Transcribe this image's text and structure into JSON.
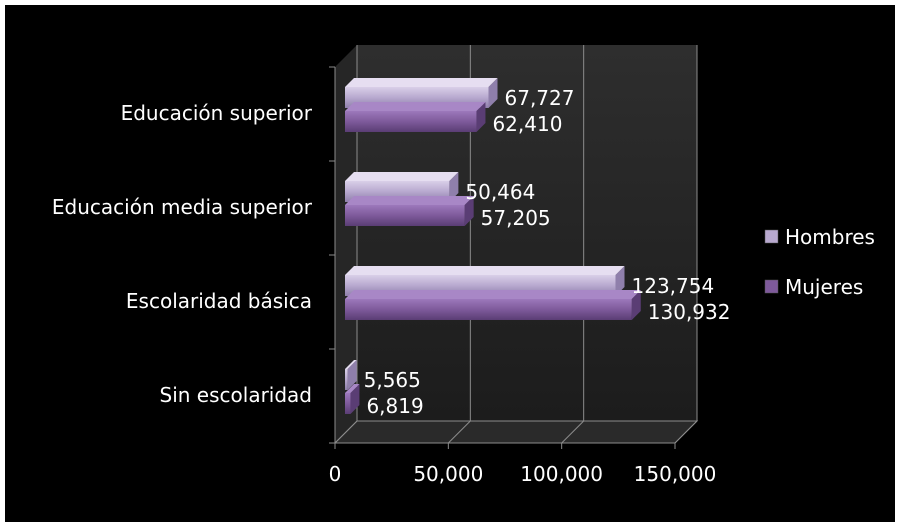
{
  "chart_data": {
    "type": "bar",
    "orientation": "horizontal",
    "style": "3d",
    "categories": [
      "Sin escolaridad",
      "Escolaridad básica",
      "Educación media superior",
      "Educación superior"
    ],
    "series": [
      {
        "name": "Hombres",
        "values": [
          5565,
          123754,
          50464,
          67727
        ],
        "labels": [
          "5,565",
          "123,754",
          "50,464",
          "67,727"
        ],
        "color": "#b8a9cf"
      },
      {
        "name": "Mujeres",
        "values": [
          6819,
          130932,
          57205,
          62410
        ],
        "labels": [
          "6,819",
          "130,932",
          "57,205",
          "62,410"
        ],
        "color": "#7e5a9b"
      }
    ],
    "x_ticks": [
      0,
      50000,
      100000,
      150000
    ],
    "x_tick_labels": [
      "0",
      "50,000",
      "100,000",
      "150,000"
    ],
    "xlim": [
      0,
      150000
    ],
    "grid": true,
    "legend_position": "right",
    "background": "#000000",
    "text_color": "#ffffff"
  }
}
